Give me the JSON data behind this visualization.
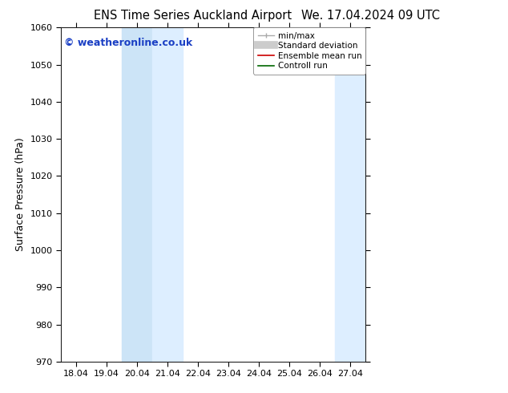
{
  "title_left": "ENS Time Series Auckland Airport",
  "title_right": "We. 17.04.2024 09 UTC",
  "ylabel": "Surface Pressure (hPa)",
  "ylim": [
    970,
    1060
  ],
  "yticks": [
    970,
    980,
    990,
    1000,
    1010,
    1020,
    1030,
    1040,
    1050,
    1060
  ],
  "xtick_labels": [
    "18.04",
    "19.04",
    "20.04",
    "21.04",
    "22.04",
    "23.04",
    "24.04",
    "25.04",
    "26.04",
    "27.04"
  ],
  "xtick_positions": [
    0,
    1,
    2,
    3,
    4,
    5,
    6,
    7,
    8,
    9
  ],
  "xlim": [
    -0.5,
    9.5
  ],
  "shaded_bands": [
    {
      "x_start": 1.5,
      "x_end": 2.5,
      "color": "#cce4f7"
    },
    {
      "x_start": 2.5,
      "x_end": 3.5,
      "color": "#ddeeff"
    },
    {
      "x_start": 8.5,
      "x_end": 9.5,
      "color": "#ddeeff"
    }
  ],
  "watermark": "© weatheronline.co.uk",
  "watermark_color": "#1a3fc4",
  "watermark_fontsize": 9,
  "legend_items": [
    {
      "label": "min/max",
      "color": "#aaaaaa",
      "lw": 1.0
    },
    {
      "label": "Standard deviation",
      "color": "#cccccc",
      "lw": 6
    },
    {
      "label": "Ensemble mean run",
      "color": "#cc0000",
      "lw": 1.2
    },
    {
      "label": "Controll run",
      "color": "#006600",
      "lw": 1.2
    }
  ],
  "bg_color": "#ffffff",
  "title_fontsize": 10.5,
  "axis_label_fontsize": 9,
  "tick_fontsize": 8
}
